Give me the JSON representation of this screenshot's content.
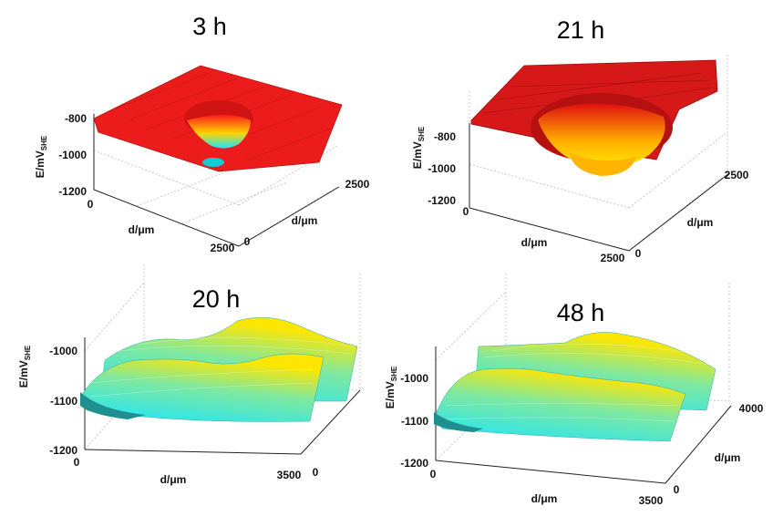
{
  "chart_data": [
    {
      "type": "surface",
      "title": "3 h",
      "zlabel": "E/mV",
      "zlabel_sub": "SHE",
      "xlabel": "d/μm",
      "ylabel": "d/μm",
      "z_ticks": [
        "-800",
        "-1000",
        "-1200"
      ],
      "x_ticks": [
        "0",
        "2500"
      ],
      "y_ticks": [
        "0",
        "2500"
      ],
      "zlim": [
        -1200,
        -800
      ],
      "xlim": [
        0,
        2500
      ],
      "ylim": [
        0,
        2500
      ],
      "plateau_E": -800,
      "pit_min_E": -1000,
      "colormap": [
        "#ff1a1a",
        "#ffd400",
        "#19e5ff"
      ]
    },
    {
      "type": "surface",
      "title": "21 h",
      "zlabel": "E/mV",
      "zlabel_sub": "SHE",
      "xlabel": "d/μm",
      "ylabel": "d/μm",
      "z_ticks": [
        "-800",
        "-1000",
        "-1200"
      ],
      "x_ticks": [
        "0",
        "2500"
      ],
      "y_ticks": [
        "0",
        "2500"
      ],
      "zlim": [
        -1200,
        -800
      ],
      "xlim": [
        0,
        2500
      ],
      "ylim": [
        0,
        2500
      ],
      "plateau_E": -760,
      "pit_min_E": -1000,
      "colormap": [
        "#e01010",
        "#ffb000",
        "#ffe600"
      ]
    },
    {
      "type": "surface",
      "title": "20 h",
      "zlabel": "E/mV",
      "zlabel_sub": "SHE",
      "xlabel": "d/μm",
      "ylabel": "",
      "z_ticks": [
        "-1000",
        "-1100",
        "-1200"
      ],
      "x_ticks": [
        "0",
        "3500"
      ],
      "y_ticks": [
        "0"
      ],
      "zlim": [
        -1200,
        -950
      ],
      "xlim": [
        0,
        3500
      ],
      "ylim": [
        0,
        3500
      ],
      "base_E": -1090,
      "ridge_E": -1000,
      "colormap": [
        "#19e5ff",
        "#7ee8a0",
        "#ffe600"
      ]
    },
    {
      "type": "surface",
      "title": "48 h",
      "zlabel": "E/mV",
      "zlabel_sub": "SHE",
      "xlabel": "d/μm",
      "ylabel": "d/μm",
      "z_ticks": [
        "-1000",
        "-1100",
        "-1200"
      ],
      "x_ticks": [
        "0",
        "3500"
      ],
      "y_ticks": [
        "0",
        "4000"
      ],
      "zlim": [
        -1200,
        -950
      ],
      "xlim": [
        0,
        3500
      ],
      "ylim": [
        0,
        4000
      ],
      "base_E": -1090,
      "ridge_E": -990,
      "colormap": [
        "#19e5ff",
        "#7ee8a0",
        "#ffe600"
      ]
    }
  ]
}
